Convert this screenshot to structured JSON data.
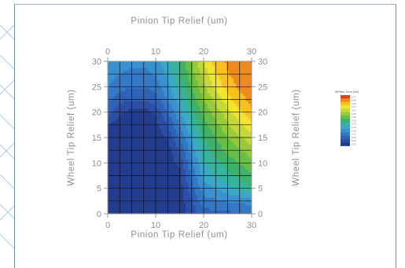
{
  "chart_data": {
    "type": "heatmap",
    "title": "",
    "xlabel": "Pinion Tip Relief (um)",
    "ylabel": "Wheel Tip Relief (um)",
    "x_ticks": [
      "0",
      "10",
      "20",
      "30"
    ],
    "y_ticks": [
      "0",
      "5",
      "10",
      "15",
      "20",
      "25",
      "30"
    ],
    "xlim": [
      0,
      30
    ],
    "ylim": [
      0,
      30
    ],
    "grid": true,
    "x": [
      0,
      2.5,
      5,
      7.5,
      10,
      12.5,
      15,
      17.5,
      20,
      22.5,
      25,
      27.5,
      30
    ],
    "y": [
      0,
      2.5,
      5,
      7.5,
      10,
      12.5,
      15,
      17.5,
      20,
      22.5,
      25,
      27.5,
      30
    ],
    "z_levels_note": "values on a 0-14 contour-level scale (0 = lowest/blue, 14 = highest/red)",
    "z": [
      [
        0.5,
        0.5,
        0.5,
        0.5,
        0.5,
        0.5,
        0.5,
        1.5,
        2.5,
        2.6,
        2.7,
        2.8,
        2.9
      ],
      [
        0.5,
        0.5,
        0.5,
        0.5,
        0.5,
        0.5,
        0.5,
        1.8,
        3.6,
        3.8,
        4.0,
        4.2,
        4.4
      ],
      [
        0.5,
        0.5,
        0.5,
        0.5,
        0.5,
        0.5,
        0.5,
        2.6,
        4.5,
        5.0,
        5.6,
        6.2,
        6.8
      ],
      [
        0.5,
        0.5,
        0.5,
        0.5,
        0.5,
        0.5,
        0.6,
        3.2,
        5.4,
        6.0,
        6.6,
        7.2,
        7.8
      ],
      [
        0.5,
        0.5,
        0.5,
        0.5,
        0.5,
        0.5,
        1.2,
        3.8,
        5.9,
        6.7,
        7.4,
        8.0,
        8.6
      ],
      [
        0.5,
        0.5,
        0.5,
        0.5,
        0.5,
        0.5,
        2.0,
        4.5,
        6.5,
        7.4,
        8.2,
        8.9,
        9.6
      ],
      [
        0.5,
        0.5,
        0.5,
        0.5,
        0.5,
        1.0,
        3.0,
        5.2,
        7.0,
        8.0,
        9.0,
        9.8,
        10.5
      ],
      [
        0.8,
        0.5,
        0.5,
        0.5,
        0.6,
        2.0,
        4.0,
        6.0,
        7.6,
        8.6,
        9.8,
        10.8,
        11.6
      ],
      [
        2.5,
        1.2,
        0.5,
        0.5,
        1.2,
        3.0,
        4.8,
        6.6,
        8.2,
        9.4,
        10.6,
        11.8,
        12.6
      ],
      [
        3.2,
        2.4,
        2.0,
        2.0,
        2.6,
        4.0,
        5.6,
        7.4,
        9.0,
        10.3,
        11.6,
        12.6,
        13.3
      ],
      [
        4.0,
        3.4,
        3.0,
        3.0,
        3.4,
        4.8,
        6.3,
        8.0,
        9.8,
        11.2,
        12.4,
        13.2,
        13.7
      ],
      [
        4.5,
        4.0,
        3.7,
        3.7,
        4.1,
        5.3,
        6.9,
        8.6,
        10.5,
        11.9,
        12.9,
        13.5,
        13.9
      ],
      [
        5.0,
        4.5,
        4.2,
        4.2,
        4.6,
        5.7,
        7.3,
        9.0,
        11.0,
        12.4,
        13.2,
        13.7,
        14.0
      ]
    ],
    "colormap": [
      "#233c8e",
      "#2c4ea4",
      "#2e63b8",
      "#3478c6",
      "#3a91d0",
      "#3ba8c8",
      "#36b39c",
      "#3fb26a",
      "#67bf45",
      "#98cb3a",
      "#c5d83a",
      "#f2e52e",
      "#f8c020",
      "#ef8a1f",
      "#e1401e"
    ],
    "colorbar": {
      "title": "Wt*Max. Error (um)",
      "labels": [
        "0.77",
        "0.69",
        "0.63",
        "0.57",
        "0.51",
        "0.45",
        "0.39",
        "0.33",
        "0.27",
        "0.22",
        "0.16",
        "0.11",
        "0.05",
        "0.00",
        "0.00"
      ],
      "placement": "right"
    }
  }
}
